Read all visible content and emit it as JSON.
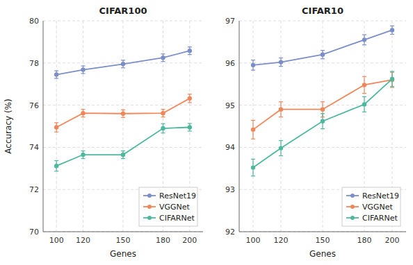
{
  "chart_data": [
    {
      "type": "line",
      "title": "CIFAR100",
      "xlabel": "Genes",
      "ylabel": "Accuracy (%)",
      "x": [
        100,
        120,
        150,
        180,
        200
      ],
      "xlim": [
        90,
        210
      ],
      "xticks": [
        100,
        120,
        150,
        180,
        200
      ],
      "ylim": [
        70,
        80
      ],
      "yticks": [
        70,
        72,
        74,
        76,
        78,
        80
      ],
      "grid": true,
      "legend": "lower right",
      "series": [
        {
          "name": "ResNet19",
          "color": "#7b8ec8",
          "marker": "o",
          "values": [
            77.45,
            77.68,
            77.95,
            78.25,
            78.58
          ],
          "err": [
            0.18,
            0.18,
            0.18,
            0.18,
            0.18
          ]
        },
        {
          "name": "VGGNet",
          "color": "#f0875a",
          "marker": "o",
          "values": [
            74.95,
            75.62,
            75.6,
            75.62,
            76.32
          ],
          "err": [
            0.22,
            0.18,
            0.18,
            0.18,
            0.2
          ]
        },
        {
          "name": "CIFARNet",
          "color": "#4db89e",
          "marker": "o",
          "values": [
            73.12,
            73.65,
            73.65,
            74.9,
            74.95
          ],
          "err": [
            0.25,
            0.18,
            0.18,
            0.22,
            0.18
          ]
        }
      ]
    },
    {
      "type": "line",
      "title": "CIFAR10",
      "xlabel": "Genes",
      "x": [
        100,
        120,
        150,
        180,
        200
      ],
      "xlim": [
        90,
        210
      ],
      "xticks": [
        100,
        120,
        150,
        180,
        200
      ],
      "ylim": [
        92,
        97
      ],
      "yticks": [
        92,
        93,
        94,
        95,
        96,
        97
      ],
      "grid": true,
      "legend": "lower right",
      "series": [
        {
          "name": "ResNet19",
          "color": "#7b8ec8",
          "marker": "o",
          "values": [
            95.95,
            96.02,
            96.2,
            96.55,
            96.78
          ],
          "err": [
            0.12,
            0.1,
            0.1,
            0.12,
            0.1
          ]
        },
        {
          "name": "VGGNet",
          "color": "#f0875a",
          "marker": "o",
          "values": [
            94.42,
            94.9,
            94.9,
            95.48,
            95.6
          ],
          "err": [
            0.22,
            0.18,
            0.18,
            0.2,
            0.18
          ]
        },
        {
          "name": "CIFARNet",
          "color": "#4db89e",
          "marker": "o",
          "values": [
            93.52,
            93.98,
            94.62,
            95.02,
            95.62
          ],
          "err": [
            0.2,
            0.18,
            0.18,
            0.18,
            0.18
          ]
        }
      ]
    }
  ]
}
